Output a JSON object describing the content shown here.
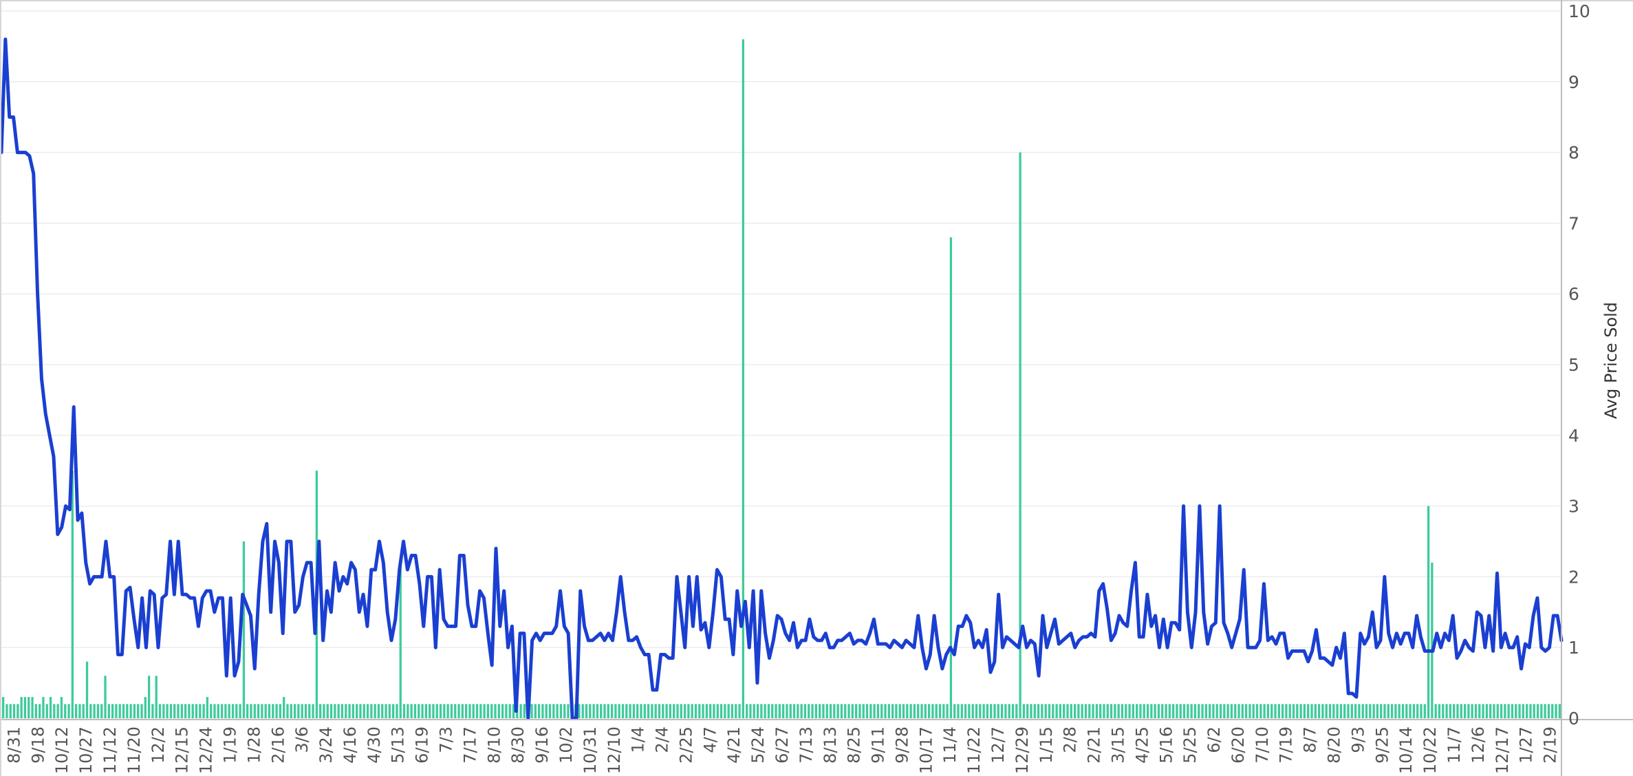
{
  "chart_data": {
    "type": "bar+line",
    "title": "",
    "ylabel_right": "Avg Price Sold",
    "ylim": [
      0,
      10
    ],
    "y_ticks": [
      "0",
      "1",
      "2",
      "3",
      "4",
      "5",
      "6",
      "7",
      "8",
      "9",
      "10"
    ],
    "grid": true,
    "x_tick_labels": [
      "8/31",
      "9/18",
      "10/12",
      "10/27",
      "11/12",
      "11/20",
      "12/2",
      "12/15",
      "12/24",
      "1/19",
      "1/28",
      "2/16",
      "3/6",
      "3/24",
      "4/16",
      "4/30",
      "5/13",
      "6/19",
      "7/3",
      "7/17",
      "8/10",
      "8/30",
      "9/16",
      "10/2",
      "10/31",
      "12/10",
      "1/4",
      "2/4",
      "2/25",
      "4/7",
      "4/21",
      "5/24",
      "6/27",
      "7/13",
      "8/13",
      "8/25",
      "9/11",
      "9/28",
      "10/17",
      "11/4",
      "11/22",
      "12/7",
      "12/29",
      "1/15",
      "2/8",
      "2/21",
      "3/15",
      "4/25",
      "5/16",
      "5/25",
      "6/2",
      "6/20",
      "7/10",
      "7/19",
      "8/7",
      "8/20",
      "9/3",
      "9/25",
      "10/14",
      "10/22",
      "11/7",
      "12/6",
      "12/17",
      "1/27",
      "2/19"
    ],
    "line_series": {
      "name": "Avg Price Sold",
      "color": "#1a3fd1",
      "values": [
        8.0,
        9.6,
        8.5,
        8.5,
        8.0,
        8.0,
        8.0,
        7.95,
        7.7,
        6.0,
        4.8,
        4.3,
        4.0,
        3.7,
        2.6,
        2.7,
        3.0,
        2.95,
        4.4,
        2.8,
        2.9,
        2.2,
        1.9,
        2.0,
        2.0,
        2.0,
        2.5,
        2.0,
        2.0,
        0.9,
        0.9,
        1.8,
        1.85,
        1.4,
        1.0,
        1.7,
        1.0,
        1.8,
        1.75,
        1.0,
        1.7,
        1.75,
        2.5,
        1.75,
        2.5,
        1.75,
        1.75,
        1.7,
        1.7,
        1.3,
        1.7,
        1.8,
        1.8,
        1.5,
        1.7,
        1.7,
        0.6,
        1.7,
        0.6,
        0.8,
        1.75,
        1.6,
        1.45,
        0.7,
        1.75,
        2.5,
        2.75,
        1.5,
        2.5,
        2.2,
        1.2,
        2.5,
        2.5,
        1.5,
        1.6,
        2.0,
        2.2,
        2.2,
        1.2,
        2.5,
        1.1,
        1.8,
        1.5,
        2.2,
        1.8,
        2.0,
        1.9,
        2.2,
        2.1,
        1.5,
        1.75,
        1.3,
        2.1,
        2.1,
        2.5,
        2.2,
        1.5,
        1.1,
        1.4,
        2.1,
        2.5,
        2.1,
        2.3,
        2.3,
        1.9,
        1.3,
        2.0,
        2.0,
        1.0,
        2.1,
        1.4,
        1.3,
        1.3,
        1.3,
        2.3,
        2.3,
        1.6,
        1.3,
        1.3,
        1.8,
        1.7,
        1.2,
        0.75,
        2.4,
        1.3,
        1.8,
        1.0,
        1.3,
        0.1,
        1.2,
        1.2,
        0.0,
        1.1,
        1.2,
        1.1,
        1.2,
        1.2,
        1.2,
        1.3,
        1.8,
        1.3,
        1.2,
        0.0,
        0.0,
        1.8,
        1.3,
        1.1,
        1.1,
        1.15,
        1.2,
        1.1,
        1.2,
        1.1,
        1.5,
        2.0,
        1.5,
        1.1,
        1.1,
        1.15,
        1.0,
        0.9,
        0.9,
        0.4,
        0.4,
        0.9,
        0.9,
        0.85,
        0.85,
        2.0,
        1.5,
        1.0,
        2.0,
        1.3,
        2.0,
        1.25,
        1.35,
        1.0,
        1.5,
        2.1,
        2.0,
        1.4,
        1.4,
        0.9,
        1.8,
        1.3,
        1.65,
        1.0,
        1.8,
        0.5,
        1.8,
        1.2,
        0.85,
        1.1,
        1.45,
        1.4,
        1.2,
        1.1,
        1.35,
        1.0,
        1.1,
        1.1,
        1.4,
        1.15,
        1.1,
        1.1,
        1.2,
        1.0,
        1.0,
        1.1,
        1.1,
        1.15,
        1.2,
        1.05,
        1.1,
        1.1,
        1.05,
        1.2,
        1.4,
        1.05,
        1.05,
        1.05,
        1.0,
        1.1,
        1.05,
        1.0,
        1.1,
        1.05,
        1.0,
        1.45,
        1.0,
        0.7,
        0.9,
        1.45,
        1.0,
        0.7,
        0.9,
        1.0,
        0.9,
        1.3,
        1.3,
        1.45,
        1.35,
        1.0,
        1.1,
        1.0,
        1.25,
        0.65,
        0.8,
        1.75,
        1.0,
        1.15,
        1.1,
        1.05,
        1.0,
        1.3,
        1.0,
        1.1,
        1.05,
        0.6,
        1.45,
        1.0,
        1.2,
        1.4,
        1.05,
        1.1,
        1.15,
        1.2,
        1.0,
        1.1,
        1.15,
        1.15,
        1.2,
        1.15,
        1.8,
        1.9,
        1.55,
        1.1,
        1.2,
        1.45,
        1.35,
        1.3,
        1.8,
        2.2,
        1.15,
        1.15,
        1.75,
        1.3,
        1.45,
        1.0,
        1.4,
        1.0,
        1.35,
        1.35,
        1.25,
        3.0,
        1.5,
        1.0,
        1.5,
        3.0,
        1.5,
        1.05,
        1.3,
        1.35,
        3.0,
        1.35,
        1.2,
        1.0,
        1.2,
        1.4,
        2.1,
        1.0,
        1.0,
        1.0,
        1.1,
        1.9,
        1.1,
        1.15,
        1.05,
        1.2,
        1.2,
        0.85,
        0.95,
        0.95,
        0.95,
        0.95,
        0.8,
        0.95,
        1.25,
        0.85,
        0.85,
        0.8,
        0.75,
        1.0,
        0.85,
        1.2,
        0.35,
        0.35,
        0.3,
        1.2,
        1.05,
        1.15,
        1.5,
        1.0,
        1.1,
        2.0,
        1.2,
        1.0,
        1.2,
        1.05,
        1.2,
        1.2,
        1.0,
        1.45,
        1.15,
        0.95,
        0.95,
        0.95,
        1.2,
        1.0,
        1.2,
        1.1,
        1.45,
        0.85,
        0.95,
        1.1,
        1.0,
        0.95,
        1.5,
        1.45,
        1.0,
        1.45,
        0.95,
        2.05,
        1.0,
        1.2,
        1.0,
        1.0,
        1.15,
        0.7,
        1.05,
        1.0,
        1.45,
        1.7,
        1.0,
        0.95,
        1.0,
        1.45,
        1.45,
        1.1
      ]
    },
    "bar_series": {
      "name": "",
      "color": "#3dcb9a",
      "values": [
        0.3,
        0.2,
        0.2,
        0.2,
        0.2,
        0.3,
        0.3,
        0.3,
        0.3,
        0.2,
        0.2,
        0.3,
        0.2,
        0.3,
        0.2,
        0.2,
        0.3,
        0.2,
        0.2,
        3.5,
        0.2,
        0.2,
        0.2,
        0.8,
        0.2,
        0.2,
        0.2,
        0.2,
        0.6,
        0.2,
        0.2,
        0.2,
        0.2,
        0.2,
        0.2,
        0.2,
        0.2,
        0.2,
        0.2,
        0.3,
        0.6,
        0.2,
        0.6,
        0.2,
        0.2,
        0.2,
        0.2,
        0.2,
        0.2,
        0.2,
        0.2,
        0.2,
        0.2,
        0.2,
        0.2,
        0.2,
        0.3,
        0.2,
        0.2,
        0.2,
        0.2,
        0.2,
        0.2,
        0.2,
        0.2,
        0.2,
        2.5,
        0.2,
        0.2,
        0.2,
        0.2,
        0.2,
        0.2,
        0.2,
        0.2,
        0.2,
        0.2,
        0.3,
        0.2,
        0.2,
        0.2,
        0.2,
        0.2,
        0.2,
        0.2,
        0.2,
        3.5,
        0.2,
        0.2,
        0.2,
        0.2,
        0.2,
        0.2,
        0.2,
        0.2,
        0.2,
        0.2,
        0.2,
        0.2,
        0.2,
        0.2,
        0.2,
        0.2,
        0.2,
        0.2,
        0.2,
        0.2,
        0.2,
        0.2,
        2.2,
        0.2,
        0.2,
        0.2,
        0.2,
        0.2,
        0.2,
        0.2,
        0.2,
        0.2,
        0.2,
        0.2,
        0.2,
        0.2,
        0.2,
        0.2,
        0.2,
        0.2,
        0.2,
        0.2,
        0.2,
        0.2,
        0.2,
        0.2,
        0.2,
        0.2,
        0.2,
        0.2,
        0.2,
        0.2,
        0.2,
        0.2,
        0.2,
        0.2,
        0.2,
        0.2,
        0.2,
        0.2,
        0.2,
        0.2,
        0.2,
        0.2,
        0.2,
        0.2,
        0.2,
        0.2,
        0.2,
        0.2,
        0.2,
        0.2,
        0.2,
        0.2,
        0.2,
        0.2,
        0.2,
        0.2,
        0.2,
        0.2,
        0.2,
        0.2,
        0.2,
        0.2,
        0.2,
        0.2,
        0.2,
        0.2,
        0.2,
        0.2,
        0.2,
        0.2,
        0.2,
        0.2,
        0.2,
        0.2,
        0.2,
        0.2,
        0.2,
        0.2,
        0.2,
        0.2,
        0.2,
        0.2,
        0.2,
        0.2,
        0.2,
        0.2,
        0.2,
        0.2,
        0.2,
        0.2,
        0.2,
        0.2,
        0.2,
        0.2,
        9.6,
        0.2,
        0.2,
        0.2,
        0.2,
        0.2,
        0.2,
        0.2,
        0.2,
        0.2,
        0.2,
        0.2,
        0.2,
        0.2,
        0.2,
        0.2,
        0.2,
        0.2,
        0.2,
        0.2,
        0.2,
        0.2,
        0.2,
        0.2,
        0.2,
        0.2,
        0.2,
        0.2,
        0.2,
        0.2,
        0.2,
        0.2,
        0.2,
        0.2,
        0.2,
        0.2,
        0.2,
        0.2,
        0.2,
        0.2,
        0.2,
        0.2,
        0.2,
        0.2,
        0.2,
        0.2,
        0.2,
        0.2,
        0.2,
        0.2,
        0.2,
        0.2,
        0.2,
        0.2,
        0.2,
        0.2,
        0.2,
        6.8,
        0.2,
        0.2,
        0.2,
        0.2,
        0.2,
        0.2,
        0.2,
        0.2,
        0.2,
        0.2,
        0.2,
        0.2,
        0.2,
        0.2,
        0.2,
        0.2,
        0.2,
        0.2,
        8.0,
        0.2,
        0.2,
        0.2,
        0.2,
        0.2,
        0.2,
        0.2,
        0.2,
        0.2,
        0.2,
        0.2,
        0.2,
        0.2,
        0.2,
        0.2,
        0.2,
        0.2,
        0.2,
        0.2,
        0.2,
        0.2,
        0.2,
        0.2,
        0.2,
        0.2,
        0.2,
        0.2,
        0.2,
        0.2,
        0.2,
        0.2,
        0.2,
        0.2,
        0.2,
        0.2,
        0.2,
        0.2,
        0.2,
        0.2,
        0.2,
        0.2,
        0.2,
        0.2,
        0.2,
        0.2,
        0.2,
        0.2,
        0.2,
        0.2,
        0.2,
        0.2,
        0.2,
        0.2,
        0.2,
        0.2,
        0.2,
        0.2,
        0.2,
        0.2,
        0.2,
        0.2,
        0.2,
        0.2,
        0.2,
        0.2,
        0.2,
        0.2,
        0.2,
        0.2,
        0.2,
        0.2,
        0.2,
        0.2,
        0.2,
        0.2,
        0.2,
        0.2,
        0.2,
        0.2,
        0.2,
        0.2,
        0.2,
        0.2,
        0.2,
        0.2,
        0.2,
        0.2,
        0.2,
        0.2,
        0.2,
        0.2,
        0.2,
        0.2,
        0.2,
        0.2,
        0.2,
        0.2,
        0.2,
        0.2,
        0.2,
        0.2,
        0.2,
        0.2,
        0.2,
        0.2,
        0.2,
        0.2,
        0.2,
        0.2,
        0.2,
        0.2,
        3.0,
        2.2,
        0.2,
        0.2,
        0.2,
        0.2,
        0.2,
        0.2,
        0.2,
        0.2,
        0.2,
        0.2,
        0.2,
        0.2,
        0.2,
        0.2,
        0.2,
        0.2,
        0.2,
        0.2,
        0.2,
        0.2,
        0.2,
        0.2,
        0.2,
        0.2,
        0.2,
        0.2,
        0.2,
        0.2,
        0.2,
        0.2,
        0.2,
        0.2,
        0.2,
        0.2,
        0.2
      ]
    }
  }
}
